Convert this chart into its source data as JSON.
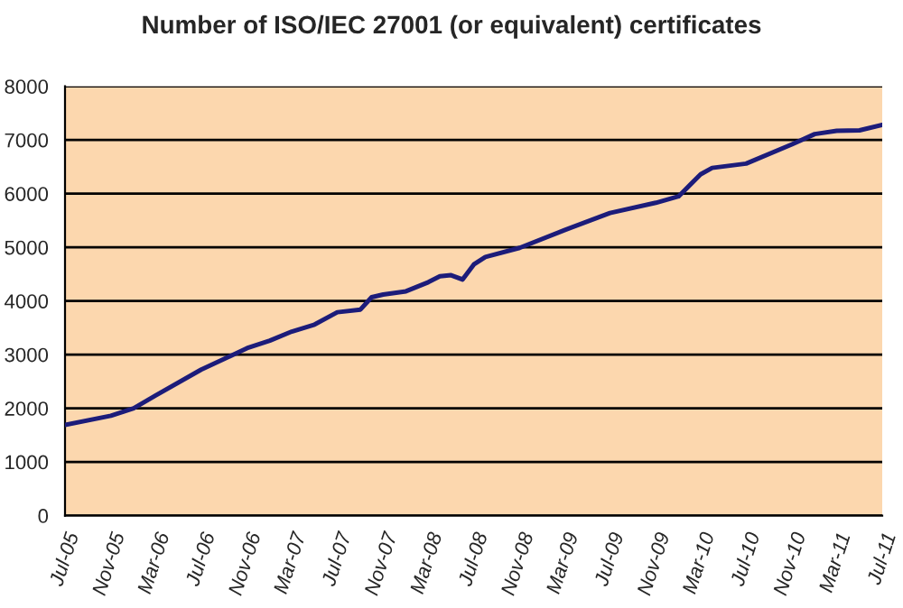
{
  "chart_data": {
    "type": "line",
    "title": "Number of ISO/IEC 27001 (or equivalent) certificates",
    "x": [
      "2005-07",
      "2005-11",
      "2006-01",
      "2006-03",
      "2006-07",
      "2006-11",
      "2007-01",
      "2007-03",
      "2007-05",
      "2007-07",
      "2007-09",
      "2007-10",
      "2007-11",
      "2008-01",
      "2008-03",
      "2008-04",
      "2008-05",
      "2008-06",
      "2008-07",
      "2008-08",
      "2008-11",
      "2009-03",
      "2009-07",
      "2009-11",
      "2010-01",
      "2010-03",
      "2010-04",
      "2010-07",
      "2010-11",
      "2011-01",
      "2011-03",
      "2011-05",
      "2011-07"
    ],
    "series": [
      {
        "color": "#1c1c7a",
        "values": [
          1690,
          1860,
          2000,
          2240,
          2720,
          3120,
          3260,
          3430,
          3560,
          3790,
          3840,
          4070,
          4120,
          4180,
          4350,
          4460,
          4480,
          4400,
          4680,
          4820,
          4990,
          5320,
          5640,
          5830,
          5950,
          6360,
          6480,
          6560,
          6920,
          7110,
          7170,
          7180,
          7280
        ]
      }
    ],
    "xlim": [
      "2005-07",
      "2011-07"
    ],
    "xticks": [
      {
        "value": "2005-07",
        "label": "Jul-05"
      },
      {
        "value": "2005-11",
        "label": "Nov-05"
      },
      {
        "value": "2006-03",
        "label": "Mar-06"
      },
      {
        "value": "2006-07",
        "label": "Jul-06"
      },
      {
        "value": "2006-11",
        "label": "Nov-06"
      },
      {
        "value": "2007-03",
        "label": "Mar-07"
      },
      {
        "value": "2007-07",
        "label": "Jul-07"
      },
      {
        "value": "2007-11",
        "label": "Nov-07"
      },
      {
        "value": "2008-03",
        "label": "Mar-08"
      },
      {
        "value": "2008-07",
        "label": "Jul-08"
      },
      {
        "value": "2008-11",
        "label": "Nov-08"
      },
      {
        "value": "2009-03",
        "label": "Mar-09"
      },
      {
        "value": "2009-07",
        "label": "Jul-09"
      },
      {
        "value": "2009-11",
        "label": "Nov-09"
      },
      {
        "value": "2010-03",
        "label": "Mar-10"
      },
      {
        "value": "2010-07",
        "label": "Jul-10"
      },
      {
        "value": "2010-11",
        "label": "Nov-10"
      },
      {
        "value": "2011-03",
        "label": "Mar-11"
      },
      {
        "value": "2011-07",
        "label": "Jul-11"
      }
    ],
    "ylim": [
      0,
      8000
    ],
    "yticks": [
      0,
      1000,
      2000,
      3000,
      4000,
      5000,
      6000,
      7000,
      8000
    ],
    "grid": "y",
    "legend": false,
    "marker": "none",
    "line_style": "solid"
  }
}
